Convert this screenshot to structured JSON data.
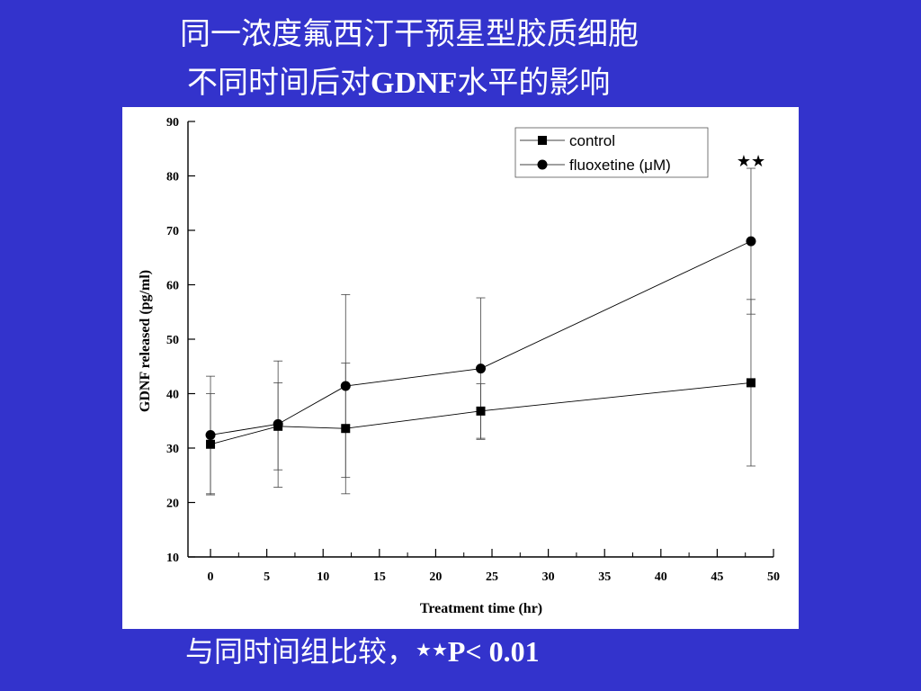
{
  "slide": {
    "title_line1": "同一浓度氟西汀干预星型胶质细胞",
    "title_line2_prefix": "不同时间后对",
    "title_line2_bold": "GDNF",
    "title_line2_suffix": "水平的影响",
    "footnote_text": "与同时间组比较，",
    "footnote_stars": "★★",
    "footnote_sig": "P< 0.01",
    "background_color": "#3333cc"
  },
  "chart_data": {
    "type": "line",
    "xlabel": "Treatment time (hr)",
    "ylabel": "GDNF released (pg/ml)",
    "xlim": [
      -2,
      50
    ],
    "ylim": [
      10,
      90
    ],
    "xticks": [
      0,
      5,
      10,
      15,
      20,
      25,
      30,
      35,
      40,
      45,
      50
    ],
    "yticks": [
      10,
      20,
      30,
      40,
      50,
      60,
      70,
      80,
      90
    ],
    "legend_position": "top-right",
    "annotation": "★★",
    "annotation_at_x": 48,
    "series": [
      {
        "name": "control",
        "marker": "square",
        "x": [
          0,
          6,
          12,
          24,
          48
        ],
        "y": [
          30.7,
          34.0,
          33.6,
          36.8,
          42.0
        ],
        "err": [
          9.3,
          8.0,
          12.0,
          5.0,
          15.3
        ]
      },
      {
        "name": "fluoxetine (μM)",
        "marker": "circle",
        "x": [
          0,
          6,
          12,
          24,
          48
        ],
        "y": [
          32.4,
          34.4,
          41.4,
          44.6,
          68.0
        ],
        "err": [
          10.8,
          11.6,
          16.8,
          13.0,
          13.4
        ]
      }
    ]
  }
}
